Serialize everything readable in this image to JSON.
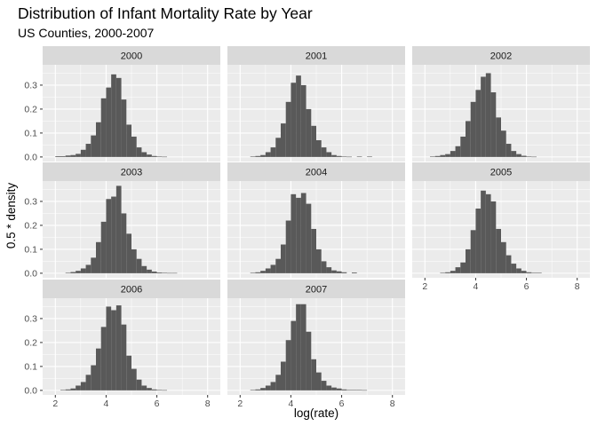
{
  "chart_data": {
    "type": "bar",
    "chart_kind": "faceted histogram",
    "title": "Distribution of Infant Mortality Rate by Year",
    "subtitle": "US Counties, 2000-2007",
    "xlabel": "log(rate)",
    "ylabel": "0.5 * density",
    "xlim": [
      1.5,
      8.5
    ],
    "ylim": [
      -0.019,
      0.385
    ],
    "x_ticks": [
      2,
      4,
      6,
      8
    ],
    "x_tick_labels": [
      "2",
      "4",
      "6",
      "8"
    ],
    "y_ticks": [
      0,
      0.1,
      0.2,
      0.3
    ],
    "y_tick_labels": [
      "0.0",
      "0.1",
      "0.2",
      "0.3"
    ],
    "bin_width": 0.2,
    "grid": true,
    "colors": {
      "bar": "#595959",
      "panel_bg": "#ebebeb",
      "strip_bg": "#d9d9d9",
      "grid_major": "#ffffff"
    },
    "facets": [
      {
        "label": "2000",
        "bins": [
          {
            "x": 2.1,
            "y": 0.003
          },
          {
            "x": 2.3,
            "y": 0.003
          },
          {
            "x": 2.5,
            "y": 0.006
          },
          {
            "x": 2.7,
            "y": 0.008
          },
          {
            "x": 2.9,
            "y": 0.013
          },
          {
            "x": 3.1,
            "y": 0.03
          },
          {
            "x": 3.3,
            "y": 0.055
          },
          {
            "x": 3.5,
            "y": 0.09
          },
          {
            "x": 3.7,
            "y": 0.145
          },
          {
            "x": 3.9,
            "y": 0.245
          },
          {
            "x": 4.1,
            "y": 0.29
          },
          {
            "x": 4.3,
            "y": 0.345
          },
          {
            "x": 4.5,
            "y": 0.33
          },
          {
            "x": 4.7,
            "y": 0.24
          },
          {
            "x": 4.9,
            "y": 0.135
          },
          {
            "x": 5.1,
            "y": 0.085
          },
          {
            "x": 5.3,
            "y": 0.04
          },
          {
            "x": 5.5,
            "y": 0.02
          },
          {
            "x": 5.7,
            "y": 0.01
          },
          {
            "x": 5.9,
            "y": 0.004
          },
          {
            "x": 6.1,
            "y": 0.002
          },
          {
            "x": 6.3,
            "y": 0.001
          }
        ]
      },
      {
        "label": "2001",
        "bins": [
          {
            "x": 2.5,
            "y": 0.002
          },
          {
            "x": 2.7,
            "y": 0.004
          },
          {
            "x": 2.9,
            "y": 0.008
          },
          {
            "x": 3.1,
            "y": 0.02
          },
          {
            "x": 3.3,
            "y": 0.04
          },
          {
            "x": 3.5,
            "y": 0.08
          },
          {
            "x": 3.7,
            "y": 0.14
          },
          {
            "x": 3.9,
            "y": 0.23
          },
          {
            "x": 4.1,
            "y": 0.31
          },
          {
            "x": 4.3,
            "y": 0.34
          },
          {
            "x": 4.5,
            "y": 0.3
          },
          {
            "x": 4.7,
            "y": 0.2
          },
          {
            "x": 4.9,
            "y": 0.13
          },
          {
            "x": 5.1,
            "y": 0.07
          },
          {
            "x": 5.3,
            "y": 0.04
          },
          {
            "x": 5.5,
            "y": 0.02
          },
          {
            "x": 5.7,
            "y": 0.008
          },
          {
            "x": 5.9,
            "y": 0.004
          },
          {
            "x": 6.1,
            "y": 0.002
          },
          {
            "x": 6.3,
            "y": 0.001
          },
          {
            "x": 6.7,
            "y": 0.002
          },
          {
            "x": 7.1,
            "y": 0.002
          }
        ]
      },
      {
        "label": "2002",
        "bins": [
          {
            "x": 2.3,
            "y": 0.002
          },
          {
            "x": 2.5,
            "y": 0.004
          },
          {
            "x": 2.7,
            "y": 0.008
          },
          {
            "x": 2.9,
            "y": 0.012
          },
          {
            "x": 3.1,
            "y": 0.025
          },
          {
            "x": 3.3,
            "y": 0.045
          },
          {
            "x": 3.5,
            "y": 0.085
          },
          {
            "x": 3.7,
            "y": 0.15
          },
          {
            "x": 3.9,
            "y": 0.23
          },
          {
            "x": 4.1,
            "y": 0.28
          },
          {
            "x": 4.3,
            "y": 0.335
          },
          {
            "x": 4.5,
            "y": 0.35
          },
          {
            "x": 4.7,
            "y": 0.27
          },
          {
            "x": 4.9,
            "y": 0.165
          },
          {
            "x": 5.1,
            "y": 0.11
          },
          {
            "x": 5.3,
            "y": 0.055
          },
          {
            "x": 5.5,
            "y": 0.025
          },
          {
            "x": 5.7,
            "y": 0.012
          },
          {
            "x": 5.9,
            "y": 0.005
          },
          {
            "x": 6.1,
            "y": 0.002
          },
          {
            "x": 6.3,
            "y": 0.001
          }
        ]
      },
      {
        "label": "2003",
        "bins": [
          {
            "x": 2.5,
            "y": 0.002
          },
          {
            "x": 2.7,
            "y": 0.005
          },
          {
            "x": 2.9,
            "y": 0.01
          },
          {
            "x": 3.1,
            "y": 0.02
          },
          {
            "x": 3.3,
            "y": 0.035
          },
          {
            "x": 3.5,
            "y": 0.065
          },
          {
            "x": 3.7,
            "y": 0.13
          },
          {
            "x": 3.9,
            "y": 0.215
          },
          {
            "x": 4.1,
            "y": 0.31
          },
          {
            "x": 4.3,
            "y": 0.32
          },
          {
            "x": 4.5,
            "y": 0.365
          },
          {
            "x": 4.7,
            "y": 0.25
          },
          {
            "x": 4.9,
            "y": 0.165
          },
          {
            "x": 5.1,
            "y": 0.1
          },
          {
            "x": 5.3,
            "y": 0.06
          },
          {
            "x": 5.5,
            "y": 0.03
          },
          {
            "x": 5.7,
            "y": 0.015
          },
          {
            "x": 5.9,
            "y": 0.007
          },
          {
            "x": 6.1,
            "y": 0.003
          },
          {
            "x": 6.3,
            "y": 0.002
          },
          {
            "x": 6.5,
            "y": 0.001
          },
          {
            "x": 6.7,
            "y": 0.001
          }
        ]
      },
      {
        "label": "2004",
        "bins": [
          {
            "x": 2.5,
            "y": 0.002
          },
          {
            "x": 2.7,
            "y": 0.004
          },
          {
            "x": 2.9,
            "y": 0.01
          },
          {
            "x": 3.1,
            "y": 0.02
          },
          {
            "x": 3.3,
            "y": 0.035
          },
          {
            "x": 3.5,
            "y": 0.06
          },
          {
            "x": 3.7,
            "y": 0.12
          },
          {
            "x": 3.9,
            "y": 0.22
          },
          {
            "x": 4.1,
            "y": 0.33
          },
          {
            "x": 4.3,
            "y": 0.315
          },
          {
            "x": 4.5,
            "y": 0.335
          },
          {
            "x": 4.7,
            "y": 0.29
          },
          {
            "x": 4.9,
            "y": 0.185
          },
          {
            "x": 5.1,
            "y": 0.1
          },
          {
            "x": 5.3,
            "y": 0.05
          },
          {
            "x": 5.5,
            "y": 0.025
          },
          {
            "x": 5.7,
            "y": 0.012
          },
          {
            "x": 5.9,
            "y": 0.008
          },
          {
            "x": 6.1,
            "y": 0.004
          },
          {
            "x": 6.5,
            "y": 0.003
          }
        ]
      },
      {
        "label": "2005",
        "bins": [
          {
            "x": 2.7,
            "y": 0.002
          },
          {
            "x": 2.9,
            "y": 0.004
          },
          {
            "x": 3.1,
            "y": 0.01
          },
          {
            "x": 3.3,
            "y": 0.025
          },
          {
            "x": 3.5,
            "y": 0.045
          },
          {
            "x": 3.7,
            "y": 0.1
          },
          {
            "x": 3.9,
            "y": 0.18
          },
          {
            "x": 4.1,
            "y": 0.27
          },
          {
            "x": 4.3,
            "y": 0.345
          },
          {
            "x": 4.5,
            "y": 0.33
          },
          {
            "x": 4.7,
            "y": 0.3
          },
          {
            "x": 4.9,
            "y": 0.185
          },
          {
            "x": 5.1,
            "y": 0.13
          },
          {
            "x": 5.3,
            "y": 0.075
          },
          {
            "x": 5.5,
            "y": 0.04
          },
          {
            "x": 5.7,
            "y": 0.02
          },
          {
            "x": 5.9,
            "y": 0.01
          },
          {
            "x": 6.1,
            "y": 0.004
          },
          {
            "x": 6.3,
            "y": 0.002
          },
          {
            "x": 6.5,
            "y": 0.002
          }
        ]
      },
      {
        "label": "2006",
        "bins": [
          {
            "x": 2.3,
            "y": 0.002
          },
          {
            "x": 2.5,
            "y": 0.004
          },
          {
            "x": 2.7,
            "y": 0.008
          },
          {
            "x": 2.9,
            "y": 0.02
          },
          {
            "x": 3.1,
            "y": 0.035
          },
          {
            "x": 3.3,
            "y": 0.065
          },
          {
            "x": 3.5,
            "y": 0.105
          },
          {
            "x": 3.7,
            "y": 0.175
          },
          {
            "x": 3.9,
            "y": 0.265
          },
          {
            "x": 4.1,
            "y": 0.35
          },
          {
            "x": 4.3,
            "y": 0.335
          },
          {
            "x": 4.5,
            "y": 0.355
          },
          {
            "x": 4.7,
            "y": 0.275
          },
          {
            "x": 4.9,
            "y": 0.145
          },
          {
            "x": 5.1,
            "y": 0.09
          },
          {
            "x": 5.3,
            "y": 0.045
          },
          {
            "x": 5.5,
            "y": 0.02
          },
          {
            "x": 5.7,
            "y": 0.01
          },
          {
            "x": 5.9,
            "y": 0.004
          },
          {
            "x": 6.1,
            "y": 0.002
          },
          {
            "x": 6.3,
            "y": 0.001
          }
        ]
      },
      {
        "label": "2007",
        "bins": [
          {
            "x": 2.5,
            "y": 0.002
          },
          {
            "x": 2.7,
            "y": 0.004
          },
          {
            "x": 2.9,
            "y": 0.01
          },
          {
            "x": 3.1,
            "y": 0.02
          },
          {
            "x": 3.3,
            "y": 0.035
          },
          {
            "x": 3.5,
            "y": 0.065
          },
          {
            "x": 3.7,
            "y": 0.12
          },
          {
            "x": 3.9,
            "y": 0.21
          },
          {
            "x": 4.1,
            "y": 0.29
          },
          {
            "x": 4.3,
            "y": 0.36
          },
          {
            "x": 4.5,
            "y": 0.36
          },
          {
            "x": 4.7,
            "y": 0.245
          },
          {
            "x": 4.9,
            "y": 0.13
          },
          {
            "x": 5.1,
            "y": 0.075
          },
          {
            "x": 5.3,
            "y": 0.04
          },
          {
            "x": 5.5,
            "y": 0.02
          },
          {
            "x": 5.7,
            "y": 0.012
          },
          {
            "x": 5.9,
            "y": 0.008
          },
          {
            "x": 6.1,
            "y": 0.004
          },
          {
            "x": 6.3,
            "y": 0.002
          },
          {
            "x": 6.5,
            "y": 0.002
          },
          {
            "x": 6.7,
            "y": 0.002
          },
          {
            "x": 6.9,
            "y": 0.001
          }
        ]
      }
    ]
  }
}
